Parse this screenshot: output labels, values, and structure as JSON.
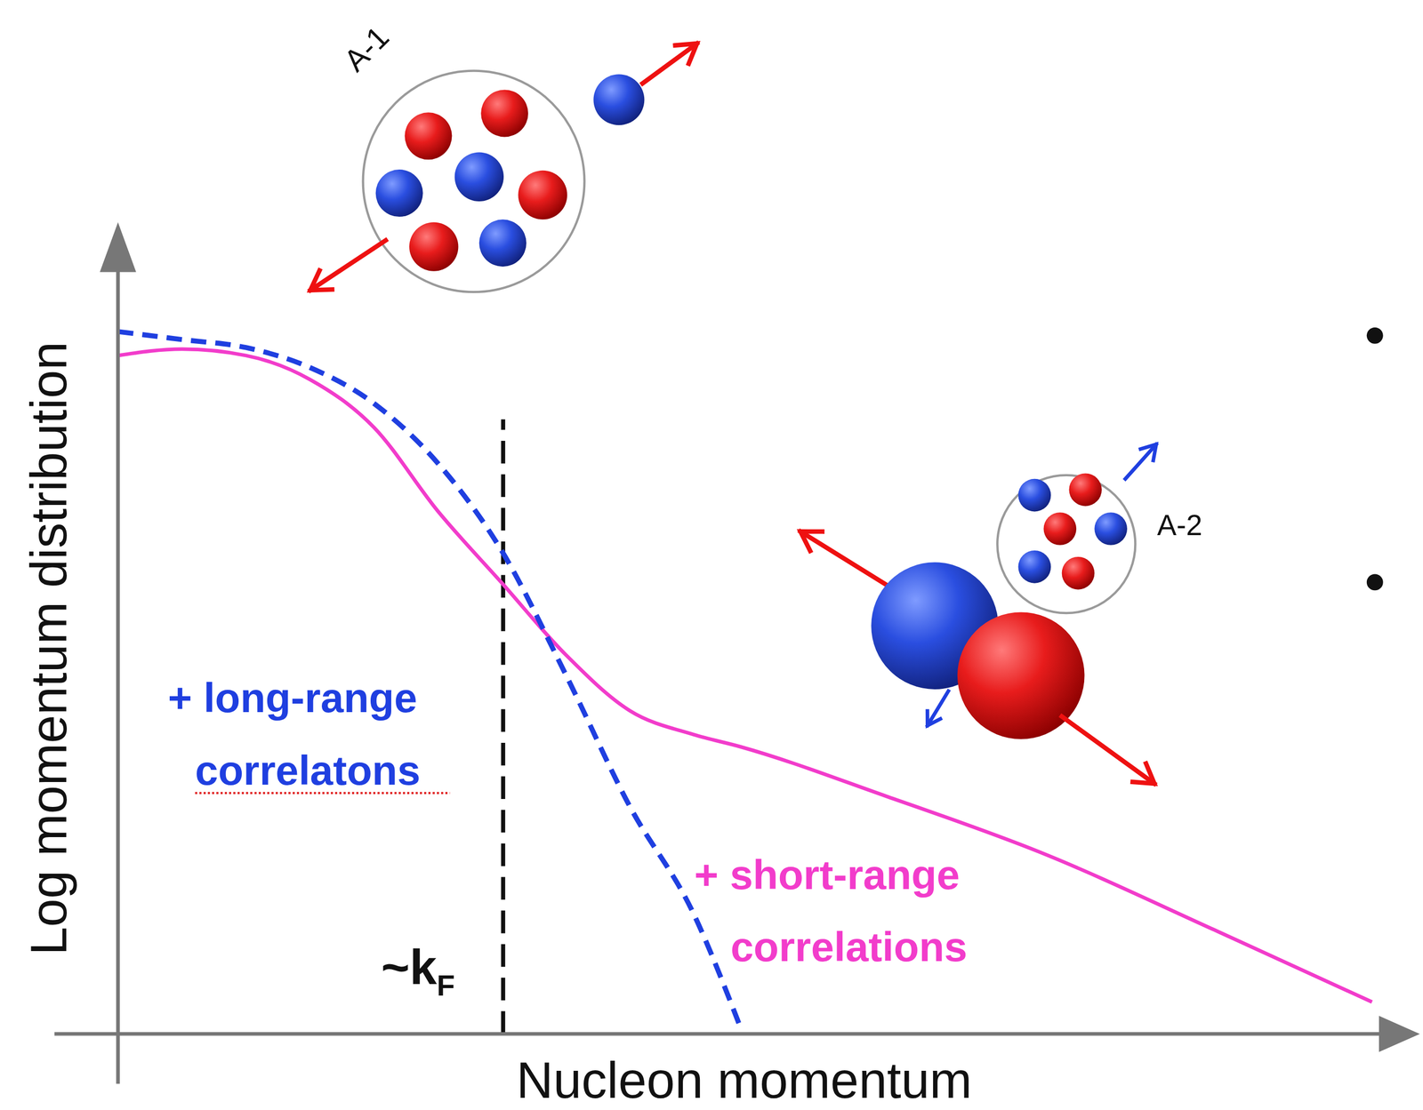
{
  "chart_data": {
    "type": "line",
    "x_label": "Nucleon momentum",
    "y_label": "Log momentum distribution",
    "x": [
      0,
      5,
      10,
      15,
      20,
      25,
      30,
      35,
      40,
      45,
      48.6,
      60,
      72,
      86,
      98
    ],
    "xlim": [
      0,
      100
    ],
    "ylim": [
      0,
      100
    ],
    "tick_labels": false,
    "series": [
      {
        "name": "+ long-range correlatons",
        "color": "#1f3fe0",
        "line_style": "dashed",
        "values": [
          88,
          87,
          86,
          83.5,
          79,
          71.5,
          60.5,
          45,
          28.5,
          15,
          1,
          null,
          null,
          null,
          null
        ]
      },
      {
        "name": "+ short-range correlations",
        "color": "#f23ccb",
        "line_style": "solid",
        "values": [
          85,
          85.8,
          85,
          82,
          76,
          65.5,
          56.5,
          47.5,
          40.5,
          37.5,
          36,
          29.8,
          22.8,
          12.8,
          4
        ]
      }
    ],
    "annotations": [
      {
        "text": "~k",
        "subscript": "F",
        "x": 30.1
      },
      {
        "text": "A-1"
      },
      {
        "text": "A-2"
      }
    ]
  }
}
